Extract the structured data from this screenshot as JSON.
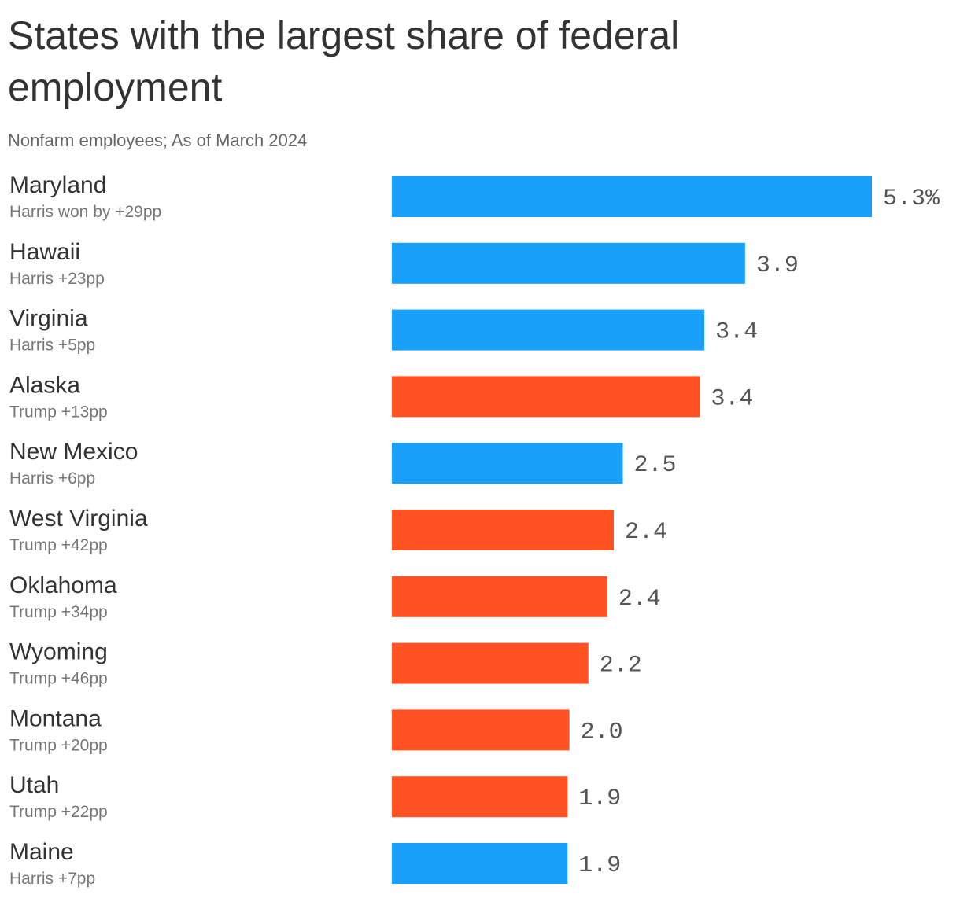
{
  "title": "States with the largest share of federal employment",
  "subtitle": "Nonfarm employees; As of March 2024",
  "colors": {
    "harris": "#18a0fb",
    "trump": "#ff5121"
  },
  "chart_data": {
    "type": "bar",
    "orientation": "horizontal",
    "title": "States with the largest share of federal employment",
    "subtitle": "Nonfarm employees; As of March 2024",
    "unit": "%",
    "xlim": [
      0,
      5.3
    ],
    "grid": false,
    "categories": [
      "Maryland",
      "Hawaii",
      "Virginia",
      "Alaska",
      "New Mexico",
      "West Virginia",
      "Oklahoma",
      "Wyoming",
      "Montana",
      "Utah",
      "Maine"
    ],
    "notes": [
      "Harris won by +29pp",
      "Harris +23pp",
      "Harris +5pp",
      "Trump +13pp",
      "Harris +6pp",
      "Trump +42pp",
      "Trump +34pp",
      "Trump +46pp",
      "Trump +20pp",
      "Trump +22pp",
      "Harris +7pp"
    ],
    "winners": [
      "harris",
      "harris",
      "harris",
      "trump",
      "harris",
      "trump",
      "trump",
      "trump",
      "trump",
      "trump",
      "harris"
    ],
    "values": [
      5.3,
      3.9,
      3.45,
      3.4,
      2.55,
      2.45,
      2.38,
      2.17,
      1.96,
      1.94,
      1.94
    ],
    "value_labels": [
      "5.3%",
      "3.9",
      "3.4",
      "3.4",
      "2.5",
      "2.4",
      "2.4",
      "2.2",
      "2.0",
      "1.9",
      "1.9"
    ]
  }
}
